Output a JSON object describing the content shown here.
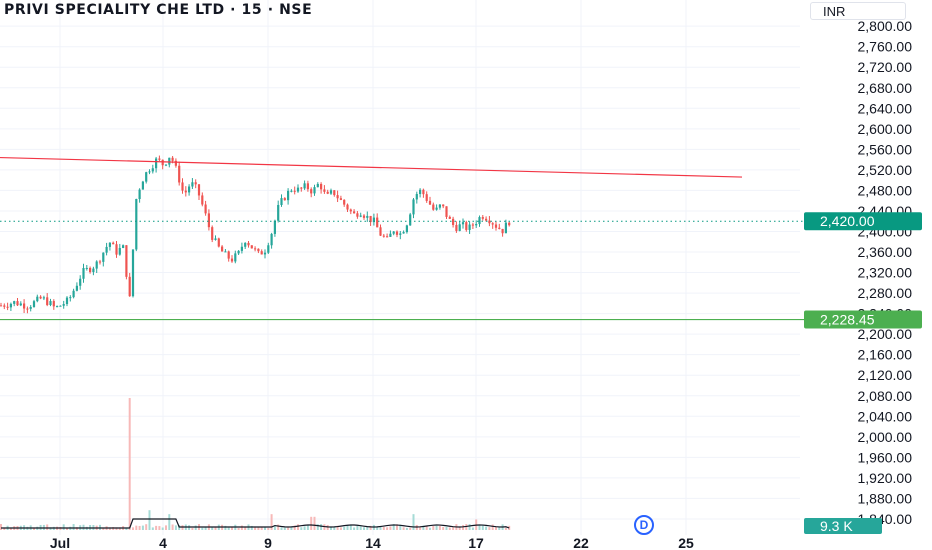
{
  "header": {
    "title": "PRIVI SPECIALITY CHE LTD · 15 · NSE",
    "currency": "INR"
  },
  "markers": {
    "last_price": "2,420.00",
    "support_level": "2,228.45",
    "volume": "9.3 K"
  },
  "controls": {
    "dividend_label": "D"
  },
  "colors": {
    "up": "#26a69a",
    "down": "#ef5350",
    "resistance_line": "#f23645",
    "support_line": "#4caf50",
    "last_price_badge": "#089981",
    "support_badge": "#4caf50",
    "volume_badge": "#26a69a"
  },
  "chart_data": {
    "type": "candlestick",
    "title": "PRIVI SPECIALITY CHE LTD · 15 · NSE",
    "currency": "INR",
    "y_ticks": [
      2800,
      2760,
      2720,
      2680,
      2640,
      2600,
      2560,
      2520,
      2480,
      2440,
      2400,
      2360,
      2320,
      2280,
      2240,
      2200,
      2160,
      2120,
      2080,
      2040,
      2000,
      1960,
      1920,
      1880,
      1840
    ],
    "y_tick_labels": [
      "2,800.00",
      "2,760.00",
      "2,720.00",
      "2,680.00",
      "2,640.00",
      "2,600.00",
      "2,560.00",
      "2,520.00",
      "2,480.00",
      "2,440.00",
      "2,400.00",
      "2,360.00",
      "2,320.00",
      "2,280.00",
      "2,240.00",
      "2,200.00",
      "2,160.00",
      "2,120.00",
      "2,080.00",
      "2,040.00",
      "2,000.00",
      "1,960.00",
      "1,920.00",
      "1,880.00",
      "1,840.00"
    ],
    "ylim": [
      1836,
      2812
    ],
    "x_ticks": [
      "Jul",
      "4",
      "9",
      "14",
      "17",
      "22",
      "25"
    ],
    "last_price": 2420,
    "resistance_line": {
      "start": 2544,
      "end": 2506
    },
    "support_level": 2228.45,
    "price_path": [
      [
        0,
        2256
      ],
      [
        2,
        2262
      ],
      [
        4,
        2255
      ],
      [
        6,
        2270
      ],
      [
        7,
        2262
      ],
      [
        8,
        2250
      ],
      [
        10,
        2266
      ],
      [
        12,
        2320
      ],
      [
        14,
        2335
      ],
      [
        16,
        2380
      ],
      [
        17,
        2360
      ],
      [
        18,
        2370
      ],
      [
        19,
        2268
      ],
      [
        20,
        2470
      ],
      [
        21,
        2505
      ],
      [
        22,
        2525
      ],
      [
        23,
        2540
      ],
      [
        24,
        2530
      ],
      [
        25,
        2550
      ],
      [
        26,
        2515
      ],
      [
        27,
        2470
      ],
      [
        28,
        2495
      ],
      [
        29,
        2480
      ],
      [
        30,
        2440
      ],
      [
        31,
        2395
      ],
      [
        32,
        2370
      ],
      [
        33,
        2355
      ],
      [
        34,
        2345
      ],
      [
        35,
        2355
      ],
      [
        36,
        2385
      ],
      [
        37,
        2370
      ],
      [
        38,
        2355
      ],
      [
        39,
        2365
      ],
      [
        40,
        2400
      ],
      [
        41,
        2450
      ],
      [
        42,
        2470
      ],
      [
        43,
        2485
      ],
      [
        44,
        2480
      ],
      [
        45,
        2488
      ],
      [
        46,
        2478
      ],
      [
        47,
        2495
      ],
      [
        48,
        2465
      ],
      [
        49,
        2478
      ],
      [
        50,
        2462
      ],
      [
        51,
        2448
      ],
      [
        52,
        2432
      ],
      [
        53,
        2440
      ],
      [
        54,
        2428
      ],
      [
        55,
        2420
      ],
      [
        56,
        2395
      ],
      [
        57,
        2382
      ],
      [
        58,
        2405
      ],
      [
        59,
        2395
      ],
      [
        60,
        2420
      ],
      [
        61,
        2470
      ],
      [
        62,
        2480
      ],
      [
        63,
        2460
      ],
      [
        64,
        2438
      ],
      [
        65,
        2452
      ],
      [
        66,
        2425
      ],
      [
        67,
        2408
      ],
      [
        68,
        2412
      ],
      [
        69,
        2405
      ],
      [
        70,
        2418
      ],
      [
        71,
        2432
      ],
      [
        72,
        2425
      ],
      [
        73,
        2412
      ],
      [
        74,
        2402
      ],
      [
        75,
        2420
      ]
    ],
    "volume_spikes": [
      [
        19,
        1.0
      ],
      [
        22,
        0.15
      ],
      [
        25,
        0.12
      ],
      [
        40,
        0.12
      ],
      [
        46,
        0.1
      ],
      [
        61,
        0.12
      ],
      [
        70,
        0.08
      ]
    ]
  }
}
